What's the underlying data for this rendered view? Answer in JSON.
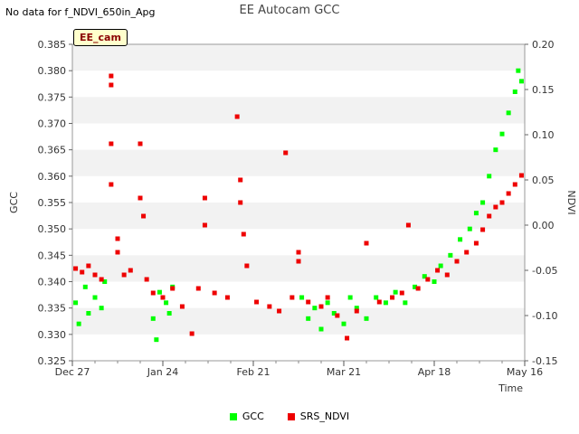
{
  "header": {
    "title": "EE Autocam GCC",
    "nodata": "No data for f_NDVI_650in_Apg",
    "tag": "EE_cam"
  },
  "chart_data": {
    "type": "scatter",
    "title": "EE Autocam GCC",
    "xlabel": "Time",
    "ylabel": "GCC",
    "y2label": "NDVI",
    "xlim": [
      "2022-12-27",
      "2023-05-16"
    ],
    "ylim": [
      0.325,
      0.385
    ],
    "y2lim": [
      -0.15,
      0.2
    ],
    "xticks": [
      {
        "date": "2022-12-27",
        "label": "Dec 27"
      },
      {
        "date": "2023-01-24",
        "label": "Jan 24"
      },
      {
        "date": "2023-02-21",
        "label": "Feb 21"
      },
      {
        "date": "2023-03-21",
        "label": "Mar 21"
      },
      {
        "date": "2023-04-18",
        "label": "Apr 18"
      },
      {
        "date": "2023-05-16",
        "label": "May 16"
      }
    ],
    "yticks": [
      "0.325",
      "0.330",
      "0.335",
      "0.340",
      "0.345",
      "0.350",
      "0.355",
      "0.360",
      "0.365",
      "0.370",
      "0.375",
      "0.380",
      "0.385"
    ],
    "y2ticks": [
      "-0.15",
      "-0.10",
      "-0.05",
      "0.00",
      "0.05",
      "0.10",
      "0.15",
      "0.20"
    ],
    "grid": "alternating horizontal bands",
    "legend_position": "bottom",
    "series": [
      {
        "name": "GCC",
        "axis": "left",
        "color": "#00ff00",
        "points": [
          {
            "x": "2022-12-28",
            "y": 0.336
          },
          {
            "x": "2022-12-29",
            "y": 0.332
          },
          {
            "x": "2022-12-31",
            "y": 0.339
          },
          {
            "x": "2023-01-01",
            "y": 0.334
          },
          {
            "x": "2023-01-03",
            "y": 0.337
          },
          {
            "x": "2023-01-05",
            "y": 0.335
          },
          {
            "x": "2023-01-06",
            "y": 0.34
          },
          {
            "x": "2023-01-21",
            "y": 0.333
          },
          {
            "x": "2023-01-22",
            "y": 0.329
          },
          {
            "x": "2023-01-23",
            "y": 0.338
          },
          {
            "x": "2023-01-25",
            "y": 0.336
          },
          {
            "x": "2023-01-26",
            "y": 0.334
          },
          {
            "x": "2023-01-27",
            "y": 0.339
          },
          {
            "x": "2023-03-08",
            "y": 0.337
          },
          {
            "x": "2023-03-10",
            "y": 0.333
          },
          {
            "x": "2023-03-12",
            "y": 0.335
          },
          {
            "x": "2023-03-14",
            "y": 0.331
          },
          {
            "x": "2023-03-16",
            "y": 0.336
          },
          {
            "x": "2023-03-18",
            "y": 0.334
          },
          {
            "x": "2023-03-21",
            "y": 0.332
          },
          {
            "x": "2023-03-23",
            "y": 0.337
          },
          {
            "x": "2023-03-25",
            "y": 0.335
          },
          {
            "x": "2023-03-28",
            "y": 0.333
          },
          {
            "x": "2023-03-31",
            "y": 0.337
          },
          {
            "x": "2023-04-03",
            "y": 0.336
          },
          {
            "x": "2023-04-06",
            "y": 0.338
          },
          {
            "x": "2023-04-09",
            "y": 0.336
          },
          {
            "x": "2023-04-12",
            "y": 0.339
          },
          {
            "x": "2023-04-15",
            "y": 0.341
          },
          {
            "x": "2023-04-18",
            "y": 0.34
          },
          {
            "x": "2023-04-20",
            "y": 0.343
          },
          {
            "x": "2023-04-23",
            "y": 0.345
          },
          {
            "x": "2023-04-26",
            "y": 0.348
          },
          {
            "x": "2023-04-29",
            "y": 0.35
          },
          {
            "x": "2023-05-01",
            "y": 0.353
          },
          {
            "x": "2023-05-03",
            "y": 0.355
          },
          {
            "x": "2023-05-05",
            "y": 0.36
          },
          {
            "x": "2023-05-07",
            "y": 0.365
          },
          {
            "x": "2023-05-09",
            "y": 0.368
          },
          {
            "x": "2023-05-11",
            "y": 0.372
          },
          {
            "x": "2023-05-13",
            "y": 0.376
          },
          {
            "x": "2023-05-14",
            "y": 0.38
          },
          {
            "x": "2023-05-15",
            "y": 0.378
          }
        ]
      },
      {
        "name": "SRS_NDVI",
        "axis": "right",
        "color": "#ee0000",
        "points": [
          {
            "x": "2022-12-28",
            "y": -0.048
          },
          {
            "x": "2022-12-30",
            "y": -0.052
          },
          {
            "x": "2023-01-01",
            "y": -0.045
          },
          {
            "x": "2023-01-03",
            "y": -0.055
          },
          {
            "x": "2023-01-05",
            "y": -0.06
          },
          {
            "x": "2023-01-08",
            "y": 0.165
          },
          {
            "x": "2023-01-08",
            "y": 0.155
          },
          {
            "x": "2023-01-08",
            "y": 0.09
          },
          {
            "x": "2023-01-08",
            "y": 0.045
          },
          {
            "x": "2023-01-10",
            "y": -0.015
          },
          {
            "x": "2023-01-10",
            "y": -0.03
          },
          {
            "x": "2023-01-12",
            "y": -0.055
          },
          {
            "x": "2023-01-14",
            "y": -0.05
          },
          {
            "x": "2023-01-17",
            "y": 0.09
          },
          {
            "x": "2023-01-17",
            "y": 0.03
          },
          {
            "x": "2023-01-18",
            "y": 0.01
          },
          {
            "x": "2023-01-19",
            "y": -0.06
          },
          {
            "x": "2023-01-21",
            "y": -0.075
          },
          {
            "x": "2023-01-24",
            "y": -0.08
          },
          {
            "x": "2023-01-27",
            "y": -0.07
          },
          {
            "x": "2023-01-30",
            "y": -0.09
          },
          {
            "x": "2023-02-02",
            "y": -0.12
          },
          {
            "x": "2023-02-04",
            "y": -0.07
          },
          {
            "x": "2023-02-06",
            "y": 0.03
          },
          {
            "x": "2023-02-06",
            "y": 0.0
          },
          {
            "x": "2023-02-09",
            "y": -0.075
          },
          {
            "x": "2023-02-13",
            "y": -0.08
          },
          {
            "x": "2023-02-16",
            "y": 0.12
          },
          {
            "x": "2023-02-17",
            "y": 0.05
          },
          {
            "x": "2023-02-17",
            "y": 0.025
          },
          {
            "x": "2023-02-18",
            "y": -0.01
          },
          {
            "x": "2023-02-19",
            "y": -0.045
          },
          {
            "x": "2023-02-22",
            "y": -0.085
          },
          {
            "x": "2023-02-26",
            "y": -0.09
          },
          {
            "x": "2023-03-01",
            "y": -0.095
          },
          {
            "x": "2023-03-03",
            "y": 0.08
          },
          {
            "x": "2023-03-05",
            "y": -0.08
          },
          {
            "x": "2023-03-07",
            "y": -0.03
          },
          {
            "x": "2023-03-07",
            "y": -0.04
          },
          {
            "x": "2023-03-10",
            "y": -0.085
          },
          {
            "x": "2023-03-14",
            "y": -0.09
          },
          {
            "x": "2023-03-16",
            "y": -0.08
          },
          {
            "x": "2023-03-19",
            "y": -0.1
          },
          {
            "x": "2023-03-22",
            "y": -0.125
          },
          {
            "x": "2023-03-25",
            "y": -0.095
          },
          {
            "x": "2023-03-28",
            "y": -0.02
          },
          {
            "x": "2023-04-01",
            "y": -0.085
          },
          {
            "x": "2023-04-05",
            "y": -0.08
          },
          {
            "x": "2023-04-08",
            "y": -0.075
          },
          {
            "x": "2023-04-10",
            "y": 0.0
          },
          {
            "x": "2023-04-13",
            "y": -0.07
          },
          {
            "x": "2023-04-16",
            "y": -0.06
          },
          {
            "x": "2023-04-19",
            "y": -0.05
          },
          {
            "x": "2023-04-22",
            "y": -0.055
          },
          {
            "x": "2023-04-25",
            "y": -0.04
          },
          {
            "x": "2023-04-28",
            "y": -0.03
          },
          {
            "x": "2023-05-01",
            "y": -0.02
          },
          {
            "x": "2023-05-03",
            "y": -0.005
          },
          {
            "x": "2023-05-05",
            "y": 0.01
          },
          {
            "x": "2023-05-07",
            "y": 0.02
          },
          {
            "x": "2023-05-09",
            "y": 0.025
          },
          {
            "x": "2023-05-11",
            "y": 0.035
          },
          {
            "x": "2023-05-13",
            "y": 0.045
          },
          {
            "x": "2023-05-15",
            "y": 0.055
          }
        ]
      }
    ]
  }
}
